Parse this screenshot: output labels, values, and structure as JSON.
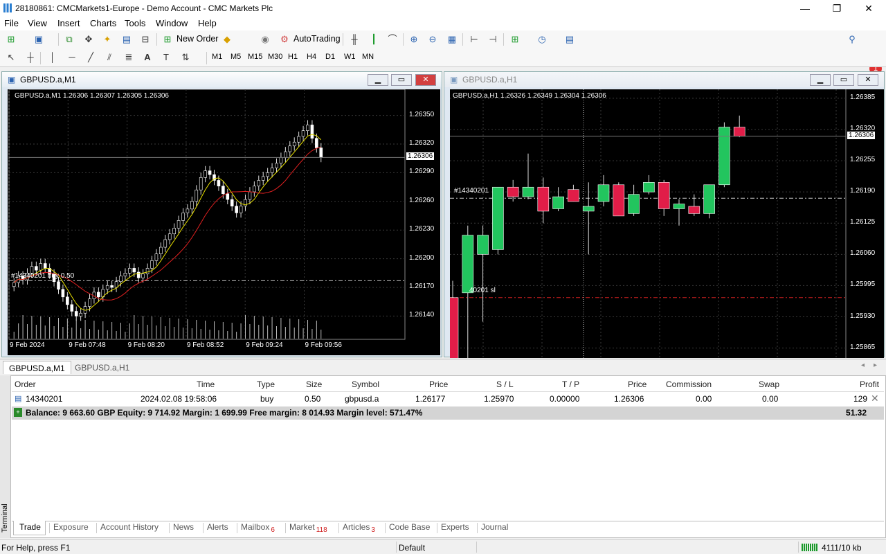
{
  "window": {
    "title": "28180861: CMCMarkets1-Europe - Demo Account - CMC Markets Plc",
    "min": "—",
    "max": "❐",
    "close": "✕"
  },
  "menu": [
    "File",
    "View",
    "Insert",
    "Charts",
    "Tools",
    "Window",
    "Help"
  ],
  "toolbar": {
    "new_order": "New Order",
    "autotrading": "AutoTrading",
    "alert_count": "1"
  },
  "timeframes": [
    "M1",
    "M5",
    "M15",
    "M30",
    "H1",
    "H4",
    "D1",
    "W1",
    "MN"
  ],
  "chart1": {
    "title": "GBPUSD.a,M1",
    "info": "GBPUSD.a,M1  1.26306 1.26307 1.26305 1.26306",
    "order_label": "#14340201 buy 0.50",
    "current_price": "1.26306",
    "price_ticks": [
      "1.26350",
      "1.26320",
      "1.26290",
      "1.26260",
      "1.26230",
      "1.26200",
      "1.26170",
      "1.26140"
    ],
    "time_ticks": [
      "9 Feb 2024",
      "9 Feb 07:48",
      "9 Feb 08:20",
      "9 Feb 08:52",
      "9 Feb 09:24",
      "9 Feb 09:56"
    ]
  },
  "chart2": {
    "title": "GBPUSD.a,H1",
    "info": "GBPUSD.a,H1  1.26326 1.26349 1.26304 1.26306",
    "order_label": "#14340201",
    "sl_label": "40201 sl",
    "current_price": "1.26306",
    "price_ticks": [
      "1.26385",
      "1.26320",
      "1.26255",
      "1.26190",
      "1.26125",
      "1.26060",
      "1.25995",
      "1.25930",
      "1.25865"
    ]
  },
  "chart_tabs": [
    "GBPUSD.a,M1",
    "GBPUSD.a,H1"
  ],
  "terminal": {
    "side_label": "Terminal",
    "columns": [
      "Order",
      "Time",
      "Type",
      "Size",
      "Symbol",
      "Price",
      "S / L",
      "T / P",
      "Price",
      "Commission",
      "Swap",
      "Profit"
    ],
    "row": [
      "14340201",
      "2024.02.08 19:58:06",
      "buy",
      "0.50",
      "gbpusd.a",
      "1.26177",
      "1.25970",
      "0.00000",
      "1.26306",
      "0.00",
      "0.00",
      "129"
    ],
    "balance": "Balance: 9 663.60 GBP  Equity: 9 714.92  Margin: 1 699.99  Free margin: 8 014.93  Margin level: 571.47%",
    "total": "51.32",
    "tabs": [
      {
        "label": "Trade",
        "badge": ""
      },
      {
        "label": "Exposure",
        "badge": ""
      },
      {
        "label": "Account History",
        "badge": ""
      },
      {
        "label": "News",
        "badge": ""
      },
      {
        "label": "Alerts",
        "badge": ""
      },
      {
        "label": "Mailbox",
        "badge": "6"
      },
      {
        "label": "Market",
        "badge": "118"
      },
      {
        "label": "Articles",
        "badge": "3"
      },
      {
        "label": "Code Base",
        "badge": ""
      },
      {
        "label": "Experts",
        "badge": ""
      },
      {
        "label": "Journal",
        "badge": ""
      }
    ]
  },
  "status": {
    "help": "For Help, press F1",
    "profile": "Default",
    "traffic": "4111/10 kb"
  },
  "chart_data": [
    {
      "type": "candlestick",
      "title": "GBPUSD.a,M1",
      "ylim": [
        1.2612,
        1.2637
      ],
      "indicators": [
        "MA fast (yellow)",
        "MA slow (red)"
      ],
      "closes": [
        1.26175,
        1.26182,
        1.26178,
        1.26185,
        1.26192,
        1.26188,
        1.26195,
        1.2619,
        1.26184,
        1.26176,
        1.26168,
        1.2616,
        1.26152,
        1.26145,
        1.2614,
        1.26143,
        1.2615,
        1.26158,
        1.26165,
        1.2616,
        1.26168,
        1.26172,
        1.2617,
        1.26176,
        1.26182,
        1.26185,
        1.2619,
        1.26186,
        1.2618,
        1.26184,
        1.2619,
        1.26198,
        1.26205,
        1.26212,
        1.2622,
        1.26226,
        1.26232,
        1.2624,
        1.26248,
        1.26252,
        1.2626,
        1.26272,
        1.26285,
        1.26292,
        1.26288,
        1.26282,
        1.26276,
        1.26268,
        1.26262,
        1.26255,
        1.26248,
        1.26255,
        1.26262,
        1.2627,
        1.26276,
        1.26282,
        1.26286,
        1.2629,
        1.26295,
        1.263,
        1.26306,
        1.26312,
        1.26318,
        1.26322,
        1.26328,
        1.26334,
        1.2634,
        1.26326,
        1.26316,
        1.26306
      ]
    },
    {
      "type": "candlestick",
      "title": "GBPUSD.a,H1",
      "ylim": [
        1.2585,
        1.26395
      ],
      "candles": [
        {
          "o": 1.2597,
          "h": 1.26005,
          "l": 1.2584,
          "c": 1.2584
        },
        {
          "o": 1.2598,
          "h": 1.2612,
          "l": 1.2584,
          "c": 1.261
        },
        {
          "o": 1.2606,
          "h": 1.2612,
          "l": 1.2592,
          "c": 1.261
        },
        {
          "o": 1.2607,
          "h": 1.262,
          "l": 1.2606,
          "c": 1.262
        },
        {
          "o": 1.262,
          "h": 1.26215,
          "l": 1.2617,
          "c": 1.2618
        },
        {
          "o": 1.2618,
          "h": 1.2627,
          "l": 1.26175,
          "c": 1.262
        },
        {
          "o": 1.262,
          "h": 1.2622,
          "l": 1.26125,
          "c": 1.2615
        },
        {
          "o": 1.26155,
          "h": 1.262,
          "l": 1.2615,
          "c": 1.2618
        },
        {
          "o": 1.26195,
          "h": 1.26205,
          "l": 1.2617,
          "c": 1.2617
        },
        {
          "o": 1.2615,
          "h": 1.2621,
          "l": 1.2606,
          "c": 1.2616
        },
        {
          "o": 1.2617,
          "h": 1.26225,
          "l": 1.2616,
          "c": 1.26205
        },
        {
          "o": 1.26205,
          "h": 1.2621,
          "l": 1.2614,
          "c": 1.2614
        },
        {
          "o": 1.26145,
          "h": 1.26205,
          "l": 1.2614,
          "c": 1.26185
        },
        {
          "o": 1.2619,
          "h": 1.26225,
          "l": 1.26185,
          "c": 1.2621
        },
        {
          "o": 1.2621,
          "h": 1.26215,
          "l": 1.2614,
          "c": 1.26155
        },
        {
          "o": 1.26155,
          "h": 1.26175,
          "l": 1.2612,
          "c": 1.26165
        },
        {
          "o": 1.2616,
          "h": 1.26185,
          "l": 1.2614,
          "c": 1.26145
        },
        {
          "o": 1.26145,
          "h": 1.26205,
          "l": 1.26135,
          "c": 1.26205
        },
        {
          "o": 1.26205,
          "h": 1.26335,
          "l": 1.262,
          "c": 1.26325
        },
        {
          "o": 1.26325,
          "h": 1.26349,
          "l": 1.26304,
          "c": 1.26306
        }
      ]
    }
  ]
}
